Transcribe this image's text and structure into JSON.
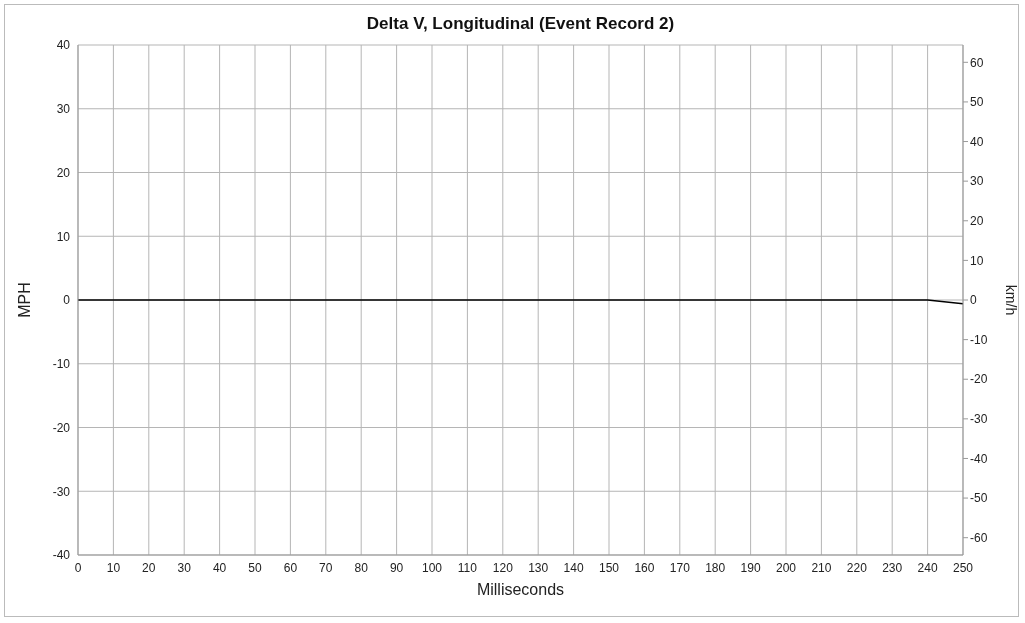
{
  "chart_data": {
    "type": "line",
    "title": "Delta V, Longitudinal (Event Record 2)",
    "xlabel": "Milliseconds",
    "ylabel": "MPH",
    "y2label": "km/h",
    "x": [
      0,
      10,
      20,
      30,
      40,
      50,
      60,
      70,
      80,
      90,
      100,
      110,
      120,
      130,
      140,
      150,
      160,
      170,
      180,
      190,
      200,
      210,
      220,
      230,
      240,
      250
    ],
    "series": [
      {
        "color": "#000000",
        "values": [
          0,
          0,
          0,
          0,
          0,
          0,
          0,
          0,
          0,
          0,
          0,
          0,
          0,
          0,
          0,
          0,
          0,
          0,
          0,
          0,
          0,
          0,
          0,
          0,
          0,
          -0.6
        ]
      }
    ],
    "xlim": [
      0,
      250
    ],
    "xticks": [
      0,
      10,
      20,
      30,
      40,
      50,
      60,
      70,
      80,
      90,
      100,
      110,
      120,
      130,
      140,
      150,
      160,
      170,
      180,
      190,
      200,
      210,
      220,
      230,
      240,
      250
    ],
    "ylim": [
      -40,
      40
    ],
    "yticks": [
      -40,
      -30,
      -20,
      -10,
      0,
      10,
      20,
      30,
      40
    ],
    "y2lim": [
      -64.37,
      64.37
    ],
    "y2ticks": [
      -60,
      -50,
      -40,
      -30,
      -20,
      -10,
      0,
      10,
      20,
      30,
      40,
      50,
      60
    ],
    "grid": true,
    "legend": false,
    "marker": "none",
    "line_style": "solid"
  }
}
